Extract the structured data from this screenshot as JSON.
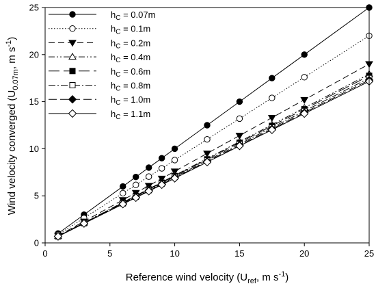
{
  "chart_data": {
    "type": "line",
    "xlabel": "Reference wind velocity (U_ref, m s^-1)",
    "ylabel": "Wind velocity converged (U_0.07m, m s^-1)",
    "xlim": [
      0,
      25
    ],
    "ylim": [
      0,
      25
    ],
    "xticks": [
      0,
      5,
      10,
      15,
      20,
      25
    ],
    "yticks": [
      0,
      5,
      10,
      15,
      20,
      25
    ],
    "grid": false,
    "legend_position": "top-left",
    "x": [
      1,
      3,
      6,
      7,
      8,
      9,
      10,
      12.5,
      15,
      17.5,
      20,
      25
    ],
    "series": [
      {
        "name": "hC = 0.07m",
        "name_main": "h",
        "name_sub": "C",
        "name_rest": " = 0.07m",
        "marker": "filled-circle",
        "line": "solid",
        "values": [
          1,
          3,
          6,
          7,
          8,
          9,
          10,
          12.5,
          15,
          17.5,
          20,
          25
        ]
      },
      {
        "name": "hC = 0.1m",
        "name_main": "h",
        "name_sub": "C",
        "name_rest": " = 0.1m",
        "marker": "open-circle",
        "line": "dotted",
        "values": [
          0.88,
          2.64,
          5.28,
          6.16,
          7.04,
          7.92,
          8.8,
          11.0,
          13.2,
          15.4,
          17.6,
          22.0
        ]
      },
      {
        "name": "hC = 0.2m",
        "name_main": "h",
        "name_sub": "C",
        "name_rest": " = 0.2m",
        "marker": "filled-triangle-down",
        "line": "dashed",
        "values": [
          0.76,
          2.28,
          4.56,
          5.32,
          6.08,
          6.84,
          7.6,
          9.5,
          11.4,
          13.3,
          15.2,
          19.0
        ]
      },
      {
        "name": "hC = 0.4m",
        "name_main": "h",
        "name_sub": "C",
        "name_rest": " = 0.4m",
        "marker": "open-triangle-up",
        "line": "dash-dot-dot",
        "values": [
          0.72,
          2.15,
          4.3,
          5.02,
          5.74,
          6.45,
          7.17,
          8.96,
          10.75,
          12.55,
          14.34,
          17.92
        ]
      },
      {
        "name": "hC = 0.6m",
        "name_main": "h",
        "name_sub": "C",
        "name_rest": " = 0.6m",
        "marker": "filled-square",
        "line": "long-dash",
        "values": [
          0.71,
          2.13,
          4.26,
          4.97,
          5.68,
          6.39,
          7.1,
          8.88,
          10.65,
          12.43,
          14.2,
          17.75
        ]
      },
      {
        "name": "hC = 0.8m",
        "name_main": "h",
        "name_sub": "C",
        "name_rest": " = 0.8m",
        "marker": "open-square",
        "line": "dash-dot",
        "values": [
          0.7,
          2.1,
          4.2,
          4.9,
          5.6,
          6.3,
          7.0,
          8.75,
          10.5,
          12.25,
          14.0,
          17.5
        ]
      },
      {
        "name": "hC = 1.0m",
        "name_main": "h",
        "name_sub": "C",
        "name_rest": " = 1.0m",
        "marker": "filled-diamond",
        "line": "medium-dash",
        "values": [
          0.69,
          2.08,
          4.15,
          4.85,
          5.54,
          6.23,
          6.92,
          8.65,
          10.38,
          12.11,
          13.84,
          17.3
        ]
      },
      {
        "name": "hC = 1.1m",
        "name_main": "h",
        "name_sub": "C",
        "name_rest": " = 1.1m",
        "marker": "open-diamond",
        "line": "solid",
        "values": [
          0.69,
          2.06,
          4.12,
          4.8,
          5.49,
          6.18,
          6.86,
          8.58,
          10.3,
          12.01,
          13.73,
          17.16
        ]
      }
    ]
  }
}
